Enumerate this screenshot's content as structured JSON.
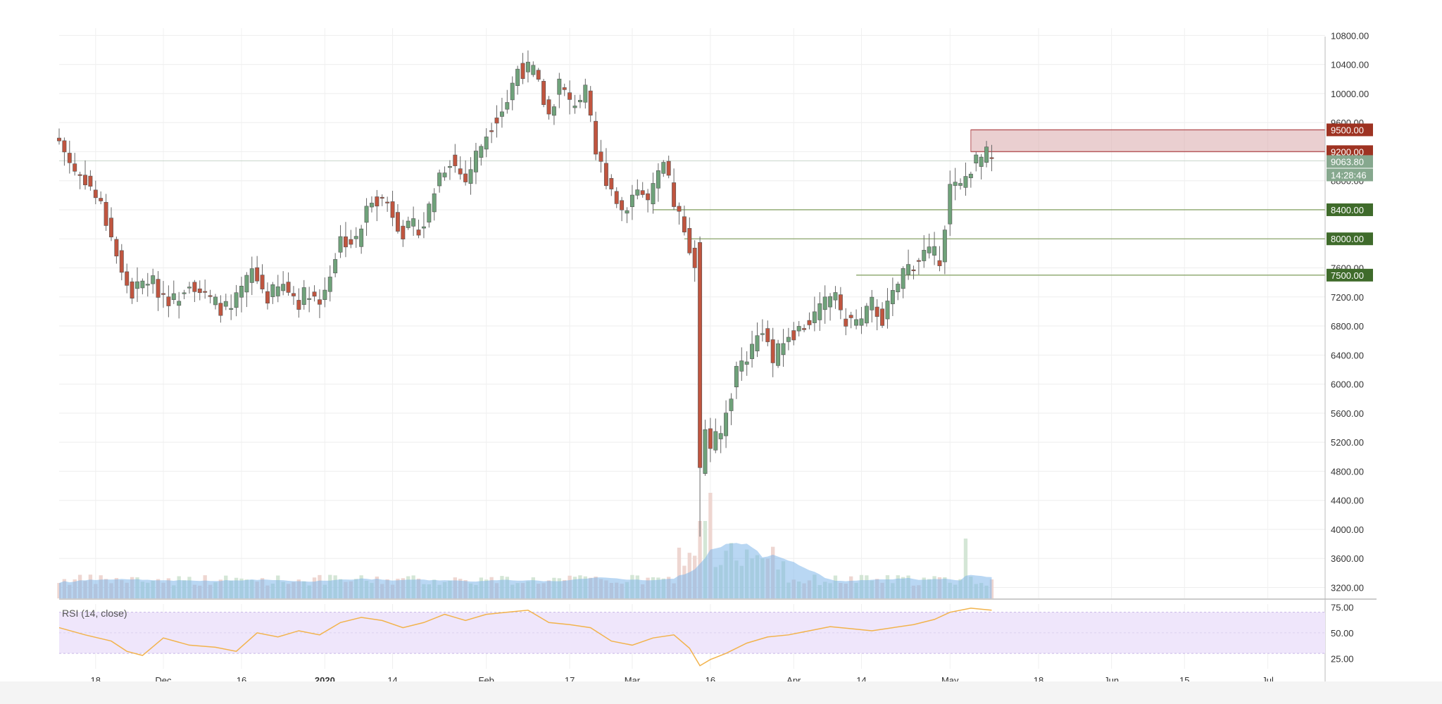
{
  "chart_data": {
    "type": "candlestick",
    "timeframe": "daily",
    "colors": {
      "up": "#6fa27a",
      "down": "#c0553f",
      "volume": "#b8d6f3",
      "volume_ma": "#7fb6ea",
      "rsi_line": "#f2b34c",
      "rsi_band": "#efe6fb",
      "level_green": "#3f6b2b",
      "level_red": "#9e3322",
      "last_price": "#86a88e",
      "zone": "#d9a7aa"
    },
    "price_axis": {
      "range": [
        3050,
        10900
      ],
      "ticks": [
        "3200.00",
        "3600.00",
        "4000.00",
        "4400.00",
        "4800.00",
        "5200.00",
        "5600.00",
        "6000.00",
        "6400.00",
        "6800.00",
        "7200.00",
        "7600.00",
        "8000.00",
        "8400.00",
        "8800.00",
        "9200.00",
        "9600.00",
        "10000.00",
        "10400.00",
        "10800.00"
      ]
    },
    "time_axis": {
      "labels": [
        {
          "text": "18",
          "day": 7,
          "bold": false
        },
        {
          "text": "Dec",
          "day": 20,
          "bold": false
        },
        {
          "text": "16",
          "day": 35,
          "bold": false
        },
        {
          "text": "2020",
          "day": 51,
          "bold": true
        },
        {
          "text": "14",
          "day": 64,
          "bold": false
        },
        {
          "text": "Feb",
          "day": 82,
          "bold": false
        },
        {
          "text": "17",
          "day": 98,
          "bold": false
        },
        {
          "text": "Mar",
          "day": 110,
          "bold": false
        },
        {
          "text": "16",
          "day": 125,
          "bold": false
        },
        {
          "text": "Apr",
          "day": 141,
          "bold": false
        },
        {
          "text": "14",
          "day": 154,
          "bold": false
        },
        {
          "text": "May",
          "day": 171,
          "bold": false
        },
        {
          "text": "18",
          "day": 188,
          "bold": false
        },
        {
          "text": "Jun",
          "day": 202,
          "bold": false
        },
        {
          "text": "15",
          "day": 216,
          "bold": false
        },
        {
          "text": "Jul",
          "day": 232,
          "bold": false
        }
      ],
      "day_range": [
        0,
        243
      ]
    },
    "levels": [
      {
        "label": "9500.00",
        "price": 9500,
        "kind": "red"
      },
      {
        "label": "9200.00",
        "price": 9200,
        "kind": "red"
      },
      {
        "label": "8400.00",
        "price": 8400,
        "kind": "green",
        "from_day": 114
      },
      {
        "label": "8000.00",
        "price": 8000,
        "kind": "green",
        "from_day": 120
      },
      {
        "label": "7500.00",
        "price": 7500,
        "kind": "green",
        "from_day": 153
      }
    ],
    "zone": {
      "from_day": 175,
      "price_low": 9200,
      "price_high": 9500
    },
    "last_price": {
      "label": "9063.80",
      "price": 9063.8,
      "countdown": "14:28:46"
    },
    "anchors": [
      [
        0,
        9350
      ],
      [
        3,
        8930
      ],
      [
        5,
        8840
      ],
      [
        8,
        8450
      ],
      [
        10,
        8050
      ],
      [
        12,
        7500
      ],
      [
        14,
        7250
      ],
      [
        17,
        7450
      ],
      [
        19,
        7300
      ],
      [
        22,
        7150
      ],
      [
        25,
        7450
      ],
      [
        28,
        7200
      ],
      [
        30,
        7100
      ],
      [
        33,
        7000
      ],
      [
        37,
        7550
      ],
      [
        40,
        7200
      ],
      [
        43,
        7350
      ],
      [
        46,
        7150
      ],
      [
        48,
        7300
      ],
      [
        50,
        7100
      ],
      [
        54,
        8000
      ],
      [
        57,
        7950
      ],
      [
        60,
        8600
      ],
      [
        63,
        8500
      ],
      [
        66,
        8100
      ],
      [
        70,
        8200
      ],
      [
        73,
        8900
      ],
      [
        75,
        9100
      ],
      [
        78,
        8800
      ],
      [
        80,
        9150
      ],
      [
        83,
        9600
      ],
      [
        86,
        9900
      ],
      [
        88,
        10350
      ],
      [
        91,
        10300
      ],
      [
        94,
        9700
      ],
      [
        96,
        10150
      ],
      [
        98,
        9850
      ],
      [
        101,
        10000
      ],
      [
        103,
        9150
      ],
      [
        106,
        8700
      ],
      [
        108,
        8400
      ],
      [
        111,
        8700
      ],
      [
        113,
        8500
      ],
      [
        116,
        9000
      ],
      [
        118,
        8500
      ],
      [
        121,
        7900
      ],
      [
        122,
        7700
      ],
      [
        123,
        4800
      ],
      [
        124,
        5400
      ],
      [
        125,
        5150
      ],
      [
        127,
        5300
      ],
      [
        130,
        6200
      ],
      [
        133,
        6500
      ],
      [
        135,
        6800
      ],
      [
        137,
        6300
      ],
      [
        140,
        6700
      ],
      [
        142,
        6750
      ],
      [
        146,
        7000
      ],
      [
        149,
        7300
      ],
      [
        150,
        6900
      ],
      [
        154,
        6850
      ],
      [
        156,
        7100
      ],
      [
        158,
        6900
      ],
      [
        160,
        7200
      ],
      [
        162,
        7550
      ],
      [
        166,
        7800
      ],
      [
        169,
        7750
      ],
      [
        171,
        8700
      ],
      [
        173,
        8700
      ],
      [
        175,
        9000
      ],
      [
        178,
        9150
      ],
      [
        179,
        9060
      ]
    ],
    "rsi": {
      "title": "RSI (14, close)",
      "ticks": [
        "25.00",
        "50.00",
        "75.00"
      ],
      "band": [
        30,
        70
      ],
      "range": [
        15,
        78
      ],
      "points": [
        [
          0,
          55
        ],
        [
          5,
          48
        ],
        [
          10,
          42
        ],
        [
          13,
          32
        ],
        [
          16,
          28
        ],
        [
          20,
          45
        ],
        [
          25,
          38
        ],
        [
          30,
          36
        ],
        [
          34,
          32
        ],
        [
          38,
          50
        ],
        [
          42,
          46
        ],
        [
          46,
          52
        ],
        [
          50,
          48
        ],
        [
          54,
          60
        ],
        [
          58,
          65
        ],
        [
          62,
          62
        ],
        [
          66,
          55
        ],
        [
          70,
          60
        ],
        [
          74,
          68
        ],
        [
          78,
          62
        ],
        [
          82,
          68
        ],
        [
          86,
          70
        ],
        [
          90,
          72
        ],
        [
          94,
          60
        ],
        [
          98,
          58
        ],
        [
          102,
          55
        ],
        [
          106,
          42
        ],
        [
          110,
          38
        ],
        [
          114,
          45
        ],
        [
          118,
          48
        ],
        [
          121,
          35
        ],
        [
          123,
          18
        ],
        [
          125,
          24
        ],
        [
          128,
          30
        ],
        [
          132,
          40
        ],
        [
          136,
          46
        ],
        [
          140,
          48
        ],
        [
          144,
          52
        ],
        [
          148,
          56
        ],
        [
          152,
          54
        ],
        [
          156,
          52
        ],
        [
          160,
          55
        ],
        [
          164,
          58
        ],
        [
          168,
          63
        ],
        [
          171,
          70
        ],
        [
          175,
          74
        ],
        [
          179,
          72
        ]
      ]
    }
  }
}
